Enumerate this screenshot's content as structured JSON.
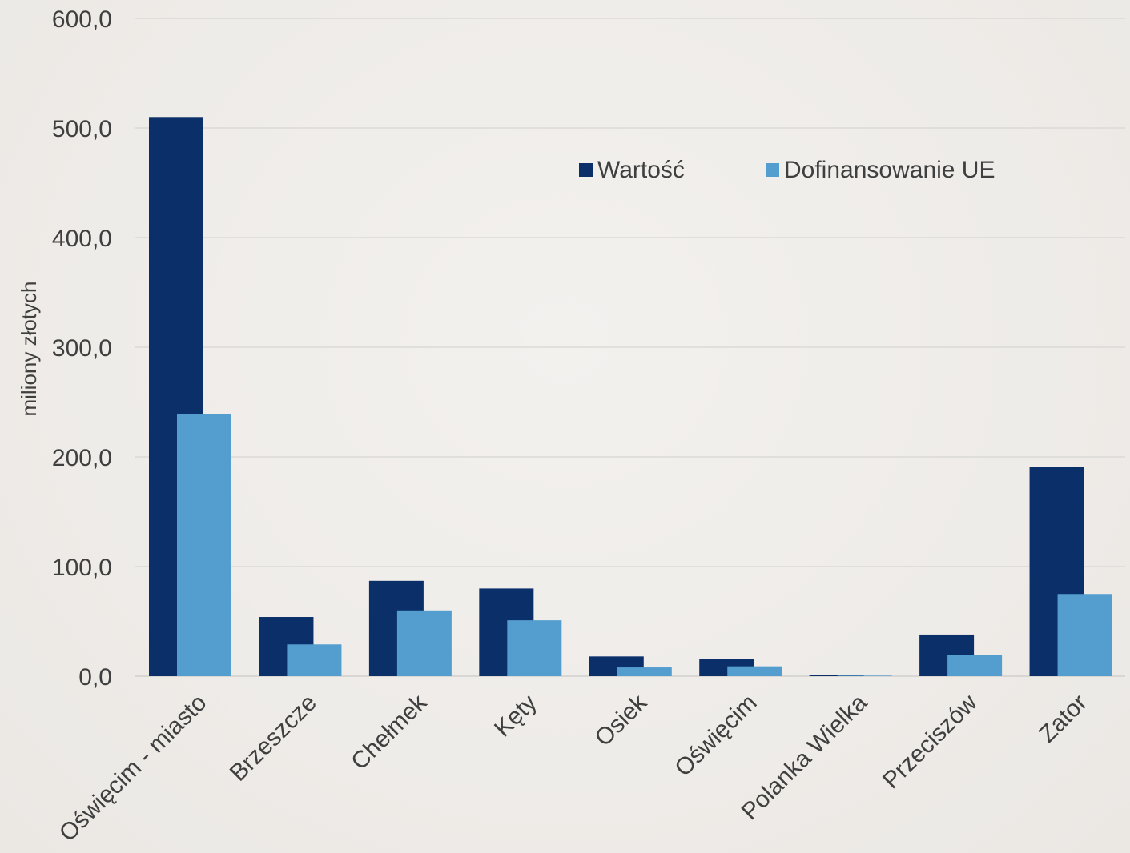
{
  "chart_data": {
    "type": "bar",
    "title": "",
    "xlabel": "",
    "ylabel": "miliony złotych",
    "ylim": [
      0,
      600
    ],
    "yticks": [
      0,
      100,
      200,
      300,
      400,
      500,
      600
    ],
    "ytick_labels": [
      "0,0",
      "100,0",
      "200,0",
      "300,0",
      "400,0",
      "500,0",
      "600,0"
    ],
    "categories": [
      "Oświęcim - miasto",
      "Brzeszcze",
      "Chełmek",
      "Kęty",
      "Osiek",
      "Oświęcim",
      "Polanka Wielka",
      "Przeciszów",
      "Zator"
    ],
    "series": [
      {
        "name": "Wartość",
        "color": "#0a2f69",
        "values": [
          510,
          54,
          87,
          80,
          18,
          16,
          1,
          38,
          191
        ]
      },
      {
        "name": "Dofinansowanie UE",
        "color": "#549dcf",
        "values": [
          239,
          29,
          60,
          51,
          8,
          9,
          0.5,
          19,
          75
        ]
      }
    ],
    "grid": true,
    "legend_position": "top-right"
  }
}
